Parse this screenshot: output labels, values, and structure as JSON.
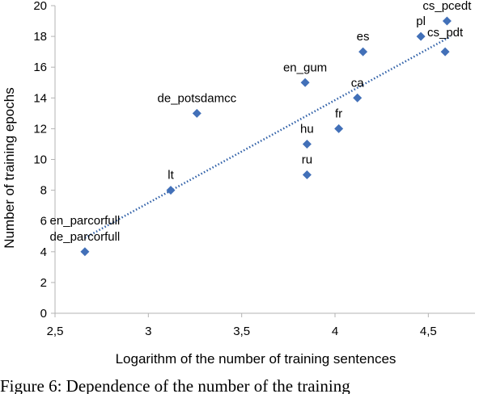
{
  "chart_data": {
    "type": "scatter",
    "xlabel": "Logarithm of the number of training sentences",
    "ylabel": "Number of training epochs",
    "xlim": [
      2.5,
      4.75
    ],
    "ylim": [
      0,
      20
    ],
    "xticks": [
      2.5,
      3,
      3.5,
      4,
      4.5
    ],
    "xtick_labels": [
      "2,5",
      "3",
      "3,5",
      "4",
      "4,5"
    ],
    "yticks": [
      0,
      2,
      4,
      6,
      8,
      10,
      12,
      14,
      16,
      18,
      20
    ],
    "ytick_labels": [
      "0",
      "2",
      "4",
      "6",
      "8",
      "10",
      "12",
      "14",
      "16",
      "18",
      "20"
    ],
    "grid": false,
    "trendline": {
      "style": "dotted",
      "color": "#2e5fa7",
      "x": [
        2.66,
        4.62
      ],
      "y": [
        4.9,
        18.0
      ]
    },
    "marker_color": "#4270b8",
    "points": [
      {
        "x": 2.66,
        "y": 4,
        "label": "en_parcorfull\nde_parcorfull"
      },
      {
        "x": 3.12,
        "y": 8,
        "label": "lt"
      },
      {
        "x": 3.26,
        "y": 13,
        "label": "de_potsdamcc"
      },
      {
        "x": 3.84,
        "y": 15,
        "label": "en_gum"
      },
      {
        "x": 3.85,
        "y": 11,
        "label": "hu"
      },
      {
        "x": 3.85,
        "y": 9,
        "label": "ru"
      },
      {
        "x": 4.02,
        "y": 12,
        "label": "fr"
      },
      {
        "x": 4.12,
        "y": 14,
        "label": "ca"
      },
      {
        "x": 4.15,
        "y": 17,
        "label": "es"
      },
      {
        "x": 4.46,
        "y": 18,
        "label": "pl"
      },
      {
        "x": 4.59,
        "y": 17,
        "label": "cs_pdt"
      },
      {
        "x": 4.6,
        "y": 19,
        "label": "cs_pcedt"
      }
    ]
  },
  "caption": "Figure 6: Dependence of the number of the training"
}
